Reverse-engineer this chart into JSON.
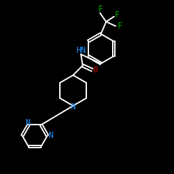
{
  "background_color": "#000000",
  "bond_color": "#ffffff",
  "atom_colors": {
    "N": "#1E90FF",
    "O": "#CC0000",
    "F": "#00AA00",
    "C": "#ffffff",
    "H": "#ffffff"
  },
  "figsize": [
    2.5,
    2.5
  ],
  "dpi": 100
}
